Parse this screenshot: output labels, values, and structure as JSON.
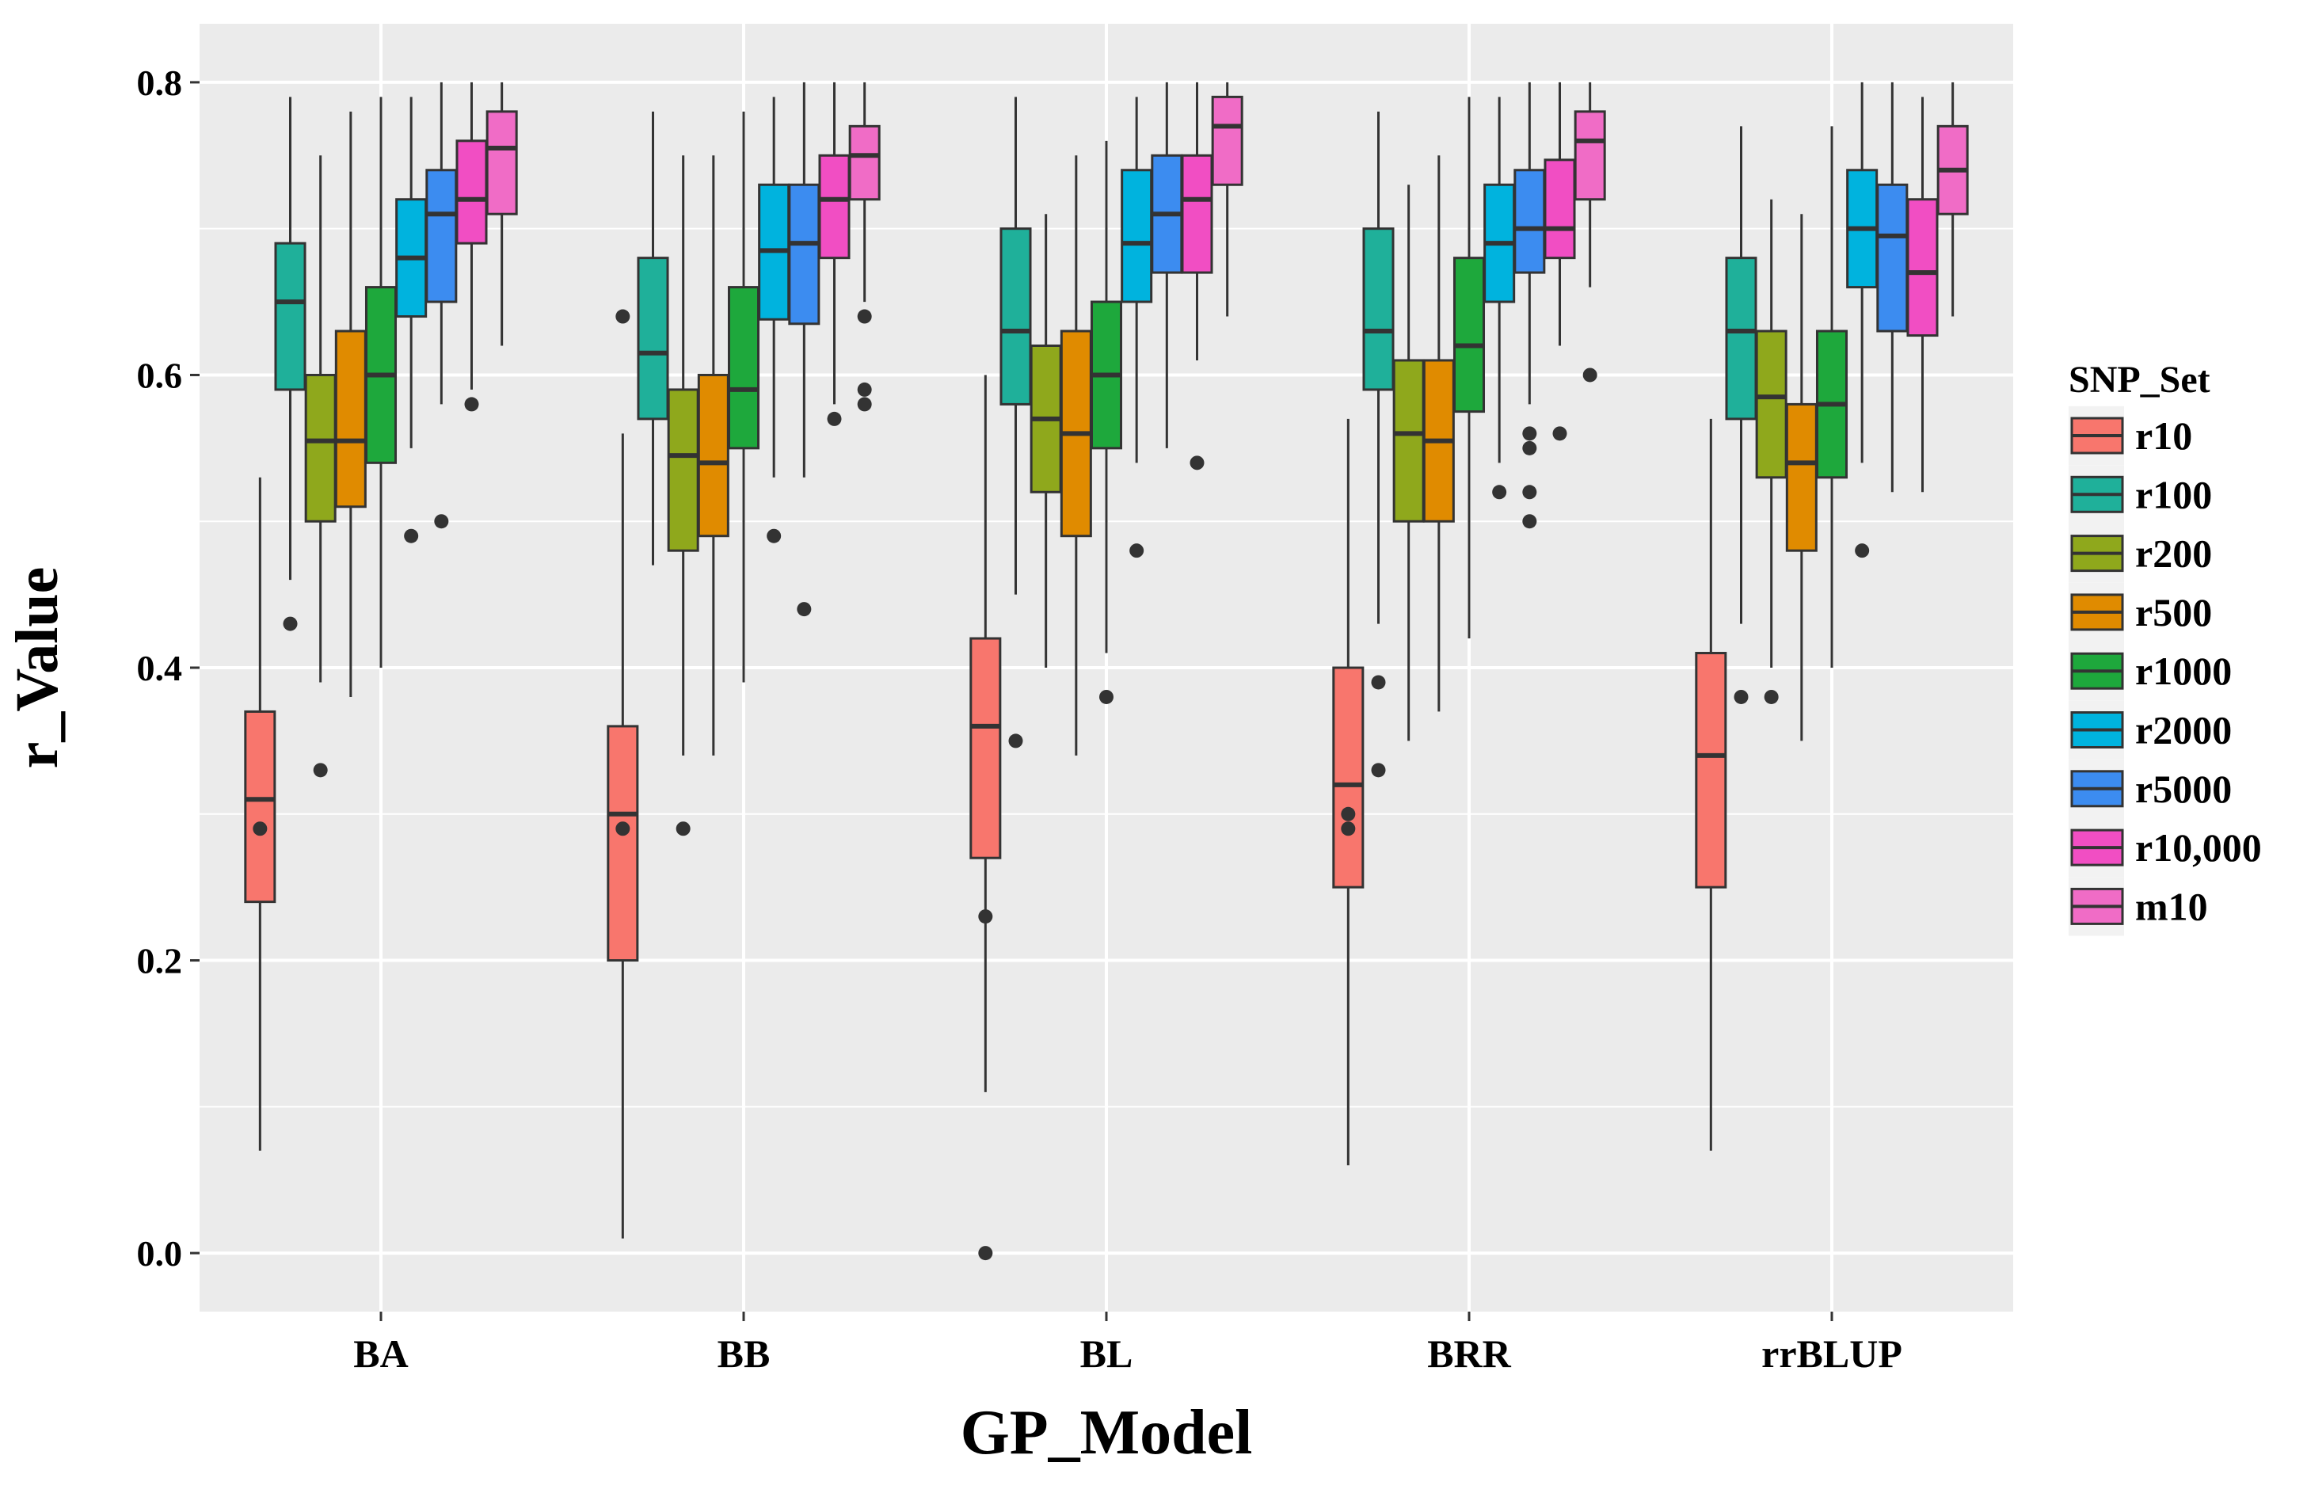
{
  "chart_data": {
    "type": "boxplot",
    "title": "",
    "xlabel": "GP_Model",
    "ylabel": "r_Value",
    "ylim": [
      -0.04,
      0.84
    ],
    "yticks": [
      0.0,
      0.2,
      0.4,
      0.6,
      0.8
    ],
    "ytick_labels": [
      "0.0",
      "0.2",
      "0.4",
      "0.6",
      "0.8"
    ],
    "grid": true,
    "legend": {
      "title": "SNP_Set",
      "position": "right"
    },
    "categories": [
      "BA",
      "BB",
      "BL",
      "BRR",
      "rrBLUP"
    ],
    "series": [
      {
        "name": "r10",
        "color": "#F8766D",
        "boxes": [
          {
            "whislo": 0.07,
            "q1": 0.24,
            "med": 0.31,
            "q3": 0.37,
            "whishi": 0.53,
            "fliers": [
              0.29
            ]
          },
          {
            "whislo": 0.01,
            "q1": 0.2,
            "med": 0.3,
            "q3": 0.36,
            "whishi": 0.56,
            "fliers": [
              0.64,
              0.29
            ]
          },
          {
            "whislo": 0.11,
            "q1": 0.27,
            "med": 0.36,
            "q3": 0.42,
            "whishi": 0.6,
            "fliers": [
              0.0,
              0.23
            ]
          },
          {
            "whislo": 0.06,
            "q1": 0.25,
            "med": 0.32,
            "q3": 0.4,
            "whishi": 0.57,
            "fliers": [
              0.3,
              0.29
            ]
          },
          {
            "whislo": 0.07,
            "q1": 0.25,
            "med": 0.34,
            "q3": 0.41,
            "whishi": 0.57,
            "fliers": []
          }
        ]
      },
      {
        "name": "r100",
        "color": "#1FB09A",
        "boxes": [
          {
            "whislo": 0.46,
            "q1": 0.59,
            "med": 0.65,
            "q3": 0.69,
            "whishi": 0.79,
            "fliers": [
              0.43
            ]
          },
          {
            "whislo": 0.47,
            "q1": 0.57,
            "med": 0.615,
            "q3": 0.68,
            "whishi": 0.78,
            "fliers": []
          },
          {
            "whislo": 0.45,
            "q1": 0.58,
            "med": 0.63,
            "q3": 0.7,
            "whishi": 0.79,
            "fliers": [
              0.35
            ]
          },
          {
            "whislo": 0.43,
            "q1": 0.59,
            "med": 0.63,
            "q3": 0.7,
            "whishi": 0.78,
            "fliers": [
              0.33,
              0.39
            ]
          },
          {
            "whislo": 0.43,
            "q1": 0.57,
            "med": 0.63,
            "q3": 0.68,
            "whishi": 0.77,
            "fliers": [
              0.38
            ]
          }
        ]
      },
      {
        "name": "r200",
        "color": "#8FA81C",
        "boxes": [
          {
            "whislo": 0.39,
            "q1": 0.5,
            "med": 0.555,
            "q3": 0.6,
            "whishi": 0.75,
            "fliers": [
              0.33
            ]
          },
          {
            "whislo": 0.34,
            "q1": 0.48,
            "med": 0.545,
            "q3": 0.59,
            "whishi": 0.75,
            "fliers": [
              0.29
            ]
          },
          {
            "whislo": 0.4,
            "q1": 0.52,
            "med": 0.57,
            "q3": 0.62,
            "whishi": 0.71,
            "fliers": []
          },
          {
            "whislo": 0.35,
            "q1": 0.5,
            "med": 0.56,
            "q3": 0.61,
            "whishi": 0.73,
            "fliers": []
          },
          {
            "whislo": 0.4,
            "q1": 0.53,
            "med": 0.585,
            "q3": 0.63,
            "whishi": 0.72,
            "fliers": [
              0.38
            ]
          }
        ]
      },
      {
        "name": "r500",
        "color": "#E08B00",
        "boxes": [
          {
            "whislo": 0.38,
            "q1": 0.51,
            "med": 0.555,
            "q3": 0.63,
            "whishi": 0.78,
            "fliers": []
          },
          {
            "whislo": 0.34,
            "q1": 0.49,
            "med": 0.54,
            "q3": 0.6,
            "whishi": 0.75,
            "fliers": []
          },
          {
            "whislo": 0.34,
            "q1": 0.49,
            "med": 0.56,
            "q3": 0.63,
            "whishi": 0.75,
            "fliers": []
          },
          {
            "whislo": 0.37,
            "q1": 0.5,
            "med": 0.555,
            "q3": 0.61,
            "whishi": 0.75,
            "fliers": []
          },
          {
            "whislo": 0.35,
            "q1": 0.48,
            "med": 0.54,
            "q3": 0.58,
            "whishi": 0.71,
            "fliers": []
          }
        ]
      },
      {
        "name": "r1000",
        "color": "#1EA83C",
        "boxes": [
          {
            "whislo": 0.4,
            "q1": 0.54,
            "med": 0.6,
            "q3": 0.66,
            "whishi": 0.79,
            "fliers": []
          },
          {
            "whislo": 0.39,
            "q1": 0.55,
            "med": 0.59,
            "q3": 0.66,
            "whishi": 0.78,
            "fliers": []
          },
          {
            "whislo": 0.41,
            "q1": 0.55,
            "med": 0.6,
            "q3": 0.65,
            "whishi": 0.76,
            "fliers": [
              0.38
            ]
          },
          {
            "whislo": 0.42,
            "q1": 0.575,
            "med": 0.62,
            "q3": 0.68,
            "whishi": 0.79,
            "fliers": []
          },
          {
            "whislo": 0.4,
            "q1": 0.53,
            "med": 0.58,
            "q3": 0.63,
            "whishi": 0.77,
            "fliers": []
          }
        ]
      },
      {
        "name": "r2000",
        "color": "#00B3DE",
        "boxes": [
          {
            "whislo": 0.55,
            "q1": 0.64,
            "med": 0.68,
            "q3": 0.72,
            "whishi": 0.79,
            "fliers": [
              0.49
            ]
          },
          {
            "whislo": 0.53,
            "q1": 0.638,
            "med": 0.685,
            "q3": 0.73,
            "whishi": 0.79,
            "fliers": [
              0.49
            ]
          },
          {
            "whislo": 0.54,
            "q1": 0.65,
            "med": 0.69,
            "q3": 0.74,
            "whishi": 0.79,
            "fliers": [
              0.48
            ]
          },
          {
            "whislo": 0.54,
            "q1": 0.65,
            "med": 0.69,
            "q3": 0.73,
            "whishi": 0.79,
            "fliers": [
              0.52
            ]
          },
          {
            "whislo": 0.54,
            "q1": 0.66,
            "med": 0.7,
            "q3": 0.74,
            "whishi": 0.8,
            "fliers": [
              0.48
            ]
          }
        ]
      },
      {
        "name": "r5000",
        "color": "#3C8CF0",
        "boxes": [
          {
            "whislo": 0.58,
            "q1": 0.65,
            "med": 0.71,
            "q3": 0.74,
            "whishi": 0.8,
            "fliers": [
              0.5
            ]
          },
          {
            "whislo": 0.53,
            "q1": 0.635,
            "med": 0.69,
            "q3": 0.73,
            "whishi": 0.8,
            "fliers": [
              0.44
            ]
          },
          {
            "whislo": 0.55,
            "q1": 0.67,
            "med": 0.71,
            "q3": 0.75,
            "whishi": 0.8,
            "fliers": []
          },
          {
            "whislo": 0.58,
            "q1": 0.67,
            "med": 0.7,
            "q3": 0.74,
            "whishi": 0.8,
            "fliers": [
              0.56,
              0.55,
              0.52,
              0.5
            ]
          },
          {
            "whislo": 0.52,
            "q1": 0.63,
            "med": 0.695,
            "q3": 0.73,
            "whishi": 0.8,
            "fliers": []
          }
        ]
      },
      {
        "name": "r10,000",
        "color": "#F14EC3",
        "boxes": [
          {
            "whislo": 0.59,
            "q1": 0.69,
            "med": 0.72,
            "q3": 0.76,
            "whishi": 0.8,
            "fliers": [
              0.58
            ]
          },
          {
            "whislo": 0.58,
            "q1": 0.68,
            "med": 0.72,
            "q3": 0.75,
            "whishi": 0.8,
            "fliers": [
              0.57
            ]
          },
          {
            "whislo": 0.61,
            "q1": 0.67,
            "med": 0.72,
            "q3": 0.75,
            "whishi": 0.8,
            "fliers": [
              0.54
            ]
          },
          {
            "whislo": 0.62,
            "q1": 0.68,
            "med": 0.7,
            "q3": 0.747,
            "whishi": 0.8,
            "fliers": [
              0.56
            ]
          },
          {
            "whislo": 0.52,
            "q1": 0.627,
            "med": 0.67,
            "q3": 0.72,
            "whishi": 0.79,
            "fliers": []
          }
        ]
      },
      {
        "name": "m10",
        "color": "#F06CC6",
        "boxes": [
          {
            "whislo": 0.62,
            "q1": 0.71,
            "med": 0.755,
            "q3": 0.78,
            "whishi": 0.8,
            "fliers": []
          },
          {
            "whislo": 0.65,
            "q1": 0.72,
            "med": 0.75,
            "q3": 0.77,
            "whishi": 0.8,
            "fliers": [
              0.64,
              0.59,
              0.58
            ]
          },
          {
            "whislo": 0.64,
            "q1": 0.73,
            "med": 0.77,
            "q3": 0.79,
            "whishi": 0.8,
            "fliers": []
          },
          {
            "whislo": 0.66,
            "q1": 0.72,
            "med": 0.76,
            "q3": 0.78,
            "whishi": 0.8,
            "fliers": [
              0.6
            ]
          },
          {
            "whislo": 0.64,
            "q1": 0.71,
            "med": 0.74,
            "q3": 0.77,
            "whishi": 0.8,
            "fliers": []
          }
        ]
      }
    ]
  }
}
